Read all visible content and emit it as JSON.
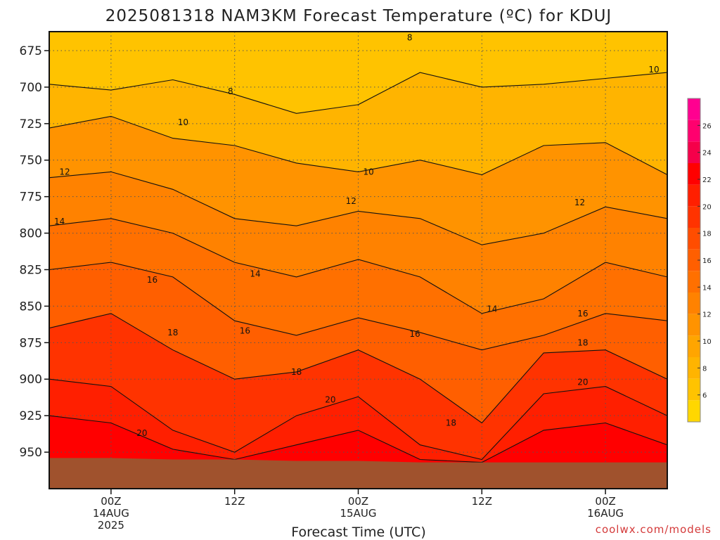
{
  "title": "2025081318 NAM3KM Forecast Temperature (ºC) for KDUJ",
  "credit": "coolwx.com/models",
  "chart_data": {
    "type": "heatmap",
    "title": "2025081318 NAM3KM Forecast Temperature (ºC) for KDUJ",
    "xlabel": "Forecast Time (UTC)",
    "ylabel": "",
    "x_ticks": [
      {
        "hour": 6,
        "lines": [
          "00Z",
          "14AUG",
          "2025"
        ]
      },
      {
        "hour": 18,
        "lines": [
          "12Z"
        ]
      },
      {
        "hour": 30,
        "lines": [
          "00Z",
          "15AUG"
        ]
      },
      {
        "hour": 42,
        "lines": [
          "12Z"
        ]
      },
      {
        "hour": 54,
        "lines": [
          "00Z",
          "16AUG"
        ]
      }
    ],
    "xlim": [
      0,
      60
    ],
    "y_ticks": [
      675,
      700,
      725,
      750,
      775,
      800,
      825,
      850,
      875,
      900,
      925,
      950
    ],
    "ylim": [
      662,
      975
    ],
    "colorbar": {
      "ticks": [
        6,
        8,
        10,
        12,
        14,
        16,
        18,
        20,
        22,
        24,
        26
      ],
      "range": [
        4,
        28
      ],
      "colors": [
        "#ffd700",
        "#ffc300",
        "#ffb400",
        "#ffa500",
        "#ff9300",
        "#ff8200",
        "#ff7000",
        "#ff5f00",
        "#ff4d00",
        "#ff3300",
        "#ff1f00",
        "#ff0000",
        "#f5004a",
        "#ff006e",
        "#ff0090"
      ]
    },
    "surface_pressure": [
      954,
      954,
      955,
      955,
      956,
      956,
      957,
      957,
      957,
      957,
      957
    ],
    "surface_color": "#a0522d",
    "series": [
      {
        "level": 8,
        "x": [
          0,
          6,
          12,
          18,
          24,
          30,
          36,
          42,
          48,
          54,
          60
        ],
        "y": [
          698,
          702,
          695,
          705,
          718,
          712,
          690,
          700,
          698,
          694,
          690
        ]
      },
      {
        "level": 10,
        "x": [
          0,
          6,
          12,
          18,
          24,
          30,
          36,
          42,
          48,
          54,
          60
        ],
        "y": [
          728,
          720,
          735,
          740,
          752,
          758,
          750,
          760,
          740,
          738,
          760
        ]
      },
      {
        "level": 12,
        "x": [
          0,
          6,
          12,
          18,
          24,
          30,
          36,
          42,
          48,
          54,
          60
        ],
        "y": [
          762,
          758,
          770,
          790,
          795,
          785,
          790,
          808,
          800,
          782,
          790
        ]
      },
      {
        "level": 14,
        "x": [
          0,
          6,
          12,
          18,
          24,
          30,
          36,
          42,
          48,
          54,
          60
        ],
        "y": [
          795,
          790,
          800,
          820,
          830,
          818,
          830,
          855,
          845,
          820,
          830
        ]
      },
      {
        "level": 16,
        "x": [
          0,
          6,
          12,
          18,
          24,
          30,
          36,
          42,
          48,
          54,
          60
        ],
        "y": [
          825,
          820,
          830,
          860,
          870,
          858,
          868,
          880,
          870,
          855,
          860
        ]
      },
      {
        "level": 18,
        "x": [
          0,
          6,
          12,
          18,
          24,
          30,
          36,
          42,
          48,
          54,
          60
        ],
        "y": [
          865,
          855,
          880,
          900,
          895,
          880,
          900,
          930,
          882,
          880,
          900
        ]
      },
      {
        "level": 20,
        "x": [
          0,
          6,
          12,
          18,
          24,
          30,
          36,
          42,
          48,
          54,
          60
        ],
        "y": [
          900,
          905,
          935,
          950,
          925,
          912,
          945,
          955,
          910,
          905,
          925
        ]
      },
      {
        "level": 22,
        "x": [
          0,
          6,
          12,
          18,
          24,
          30,
          36,
          42,
          48,
          54,
          60
        ],
        "y": [
          925,
          930,
          948,
          955,
          945,
          935,
          955,
          957,
          935,
          930,
          945
        ]
      }
    ],
    "contour_labels": [
      {
        "text": "8",
        "x": 17.6,
        "y": 703
      },
      {
        "text": "8",
        "x": 35.0,
        "y": 666
      },
      {
        "text": "10",
        "x": 58.7,
        "y": 688
      },
      {
        "text": "10",
        "x": 13.0,
        "y": 724
      },
      {
        "text": "10",
        "x": 31.0,
        "y": 758
      },
      {
        "text": "12",
        "x": 1.5,
        "y": 758
      },
      {
        "text": "12",
        "x": 29.3,
        "y": 778
      },
      {
        "text": "12",
        "x": 51.5,
        "y": 779
      },
      {
        "text": "14",
        "x": 1.0,
        "y": 792
      },
      {
        "text": "14",
        "x": 20.0,
        "y": 828
      },
      {
        "text": "14",
        "x": 43.0,
        "y": 852
      },
      {
        "text": "16",
        "x": 10.0,
        "y": 832
      },
      {
        "text": "16",
        "x": 19.0,
        "y": 867
      },
      {
        "text": "16",
        "x": 35.5,
        "y": 869
      },
      {
        "text": "16",
        "x": 51.8,
        "y": 855
      },
      {
        "text": "18",
        "x": 12.0,
        "y": 868
      },
      {
        "text": "18",
        "x": 24.0,
        "y": 895
      },
      {
        "text": "18",
        "x": 39.0,
        "y": 930
      },
      {
        "text": "18",
        "x": 51.8,
        "y": 875
      },
      {
        "text": "20",
        "x": 9.0,
        "y": 937
      },
      {
        "text": "20",
        "x": 27.3,
        "y": 914
      },
      {
        "text": "20",
        "x": 51.8,
        "y": 902
      }
    ]
  }
}
